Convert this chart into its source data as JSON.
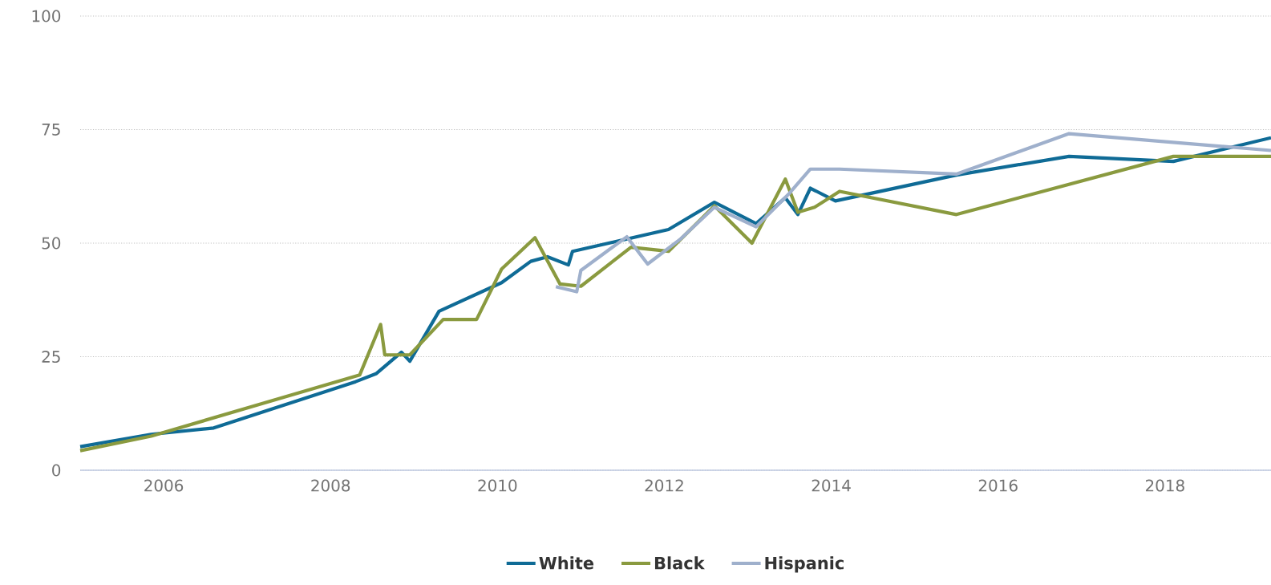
{
  "chart_data": {
    "type": "line",
    "xlim": [
      2005,
      2019.27
    ],
    "xticks": [
      2006,
      2008,
      2010,
      2012,
      2014,
      2016,
      2018
    ],
    "ylim": [
      0,
      100
    ],
    "yticks": [
      0,
      25,
      50,
      75,
      100
    ],
    "grid": "y",
    "legend": "bottom",
    "line_style": "solid",
    "marker": "none",
    "series": [
      {
        "name": "White",
        "color": "#0f6b96",
        "x": [
          2005,
          2005.85,
          2006.6,
          2008.3,
          2008.55,
          2008.85,
          2008.95,
          2009.3,
          2010.05,
          2010.4,
          2010.6,
          2010.85,
          2010.9,
          2012.05,
          2012.6,
          2013.1,
          2013.45,
          2013.6,
          2013.75,
          2014.05,
          2015.5,
          2016.85,
          2018.1,
          2019.27
        ],
        "values": [
          5.2,
          7.9,
          9.3,
          19.5,
          21.3,
          26,
          24,
          35,
          41.3,
          46,
          47,
          45.2,
          48.2,
          53,
          59,
          54.3,
          60,
          56.3,
          62.1,
          59.3,
          65,
          69.1,
          68,
          73.2
        ]
      },
      {
        "name": "Black",
        "color": "#8a9a3f",
        "x": [
          2005,
          2005.85,
          2008.35,
          2008.6,
          2008.65,
          2008.95,
          2009.35,
          2009.75,
          2010.05,
          2010.45,
          2010.75,
          2011.0,
          2011.6,
          2012.05,
          2012.6,
          2013.05,
          2013.45,
          2013.6,
          2013.8,
          2014.1,
          2015.5,
          2018.1,
          2019.27
        ],
        "values": [
          4.3,
          7.5,
          21,
          32.1,
          25.4,
          25.4,
          33.2,
          33.2,
          44.3,
          51.2,
          41,
          40.5,
          49.1,
          48.2,
          58.2,
          50,
          64.1,
          56.8,
          57.9,
          61.4,
          56.3,
          69.1,
          69.1
        ]
      },
      {
        "name": "Hispanic",
        "color": "#9fb0cc",
        "x": [
          2010.7,
          2010.95,
          2011.0,
          2011.55,
          2011.8,
          2012.2,
          2012.6,
          2013.1,
          2013.5,
          2013.75,
          2014.1,
          2015.5,
          2016.85,
          2019.27
        ],
        "values": [
          40.4,
          39.3,
          44,
          51.4,
          45.4,
          51,
          57.9,
          53.6,
          61,
          66.3,
          66.3,
          65.2,
          74.1,
          70.4
        ]
      }
    ]
  }
}
